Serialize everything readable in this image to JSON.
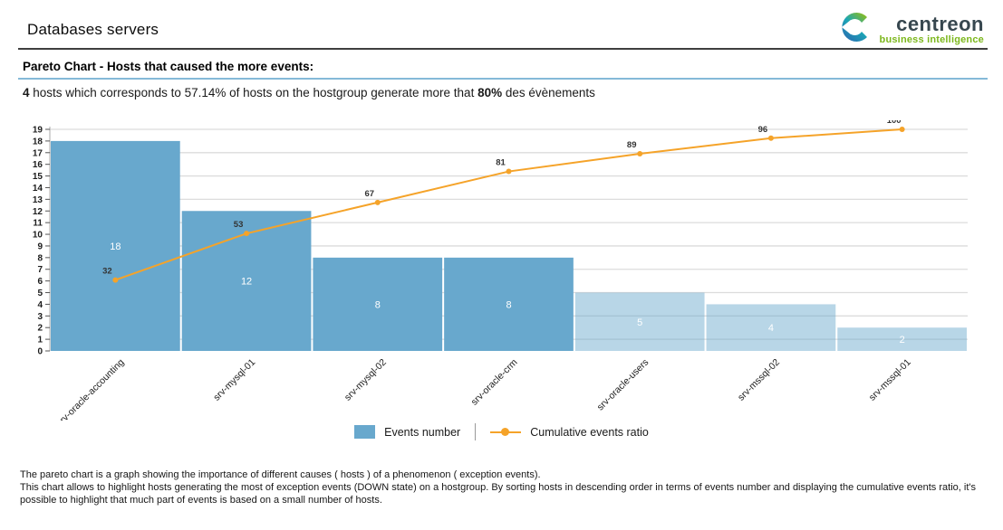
{
  "header": {
    "title": "Databases servers",
    "logo": {
      "name": "centreon",
      "tagline": "business intelligence",
      "brand_green": "#7cb71c",
      "brand_dark": "#37474f"
    }
  },
  "report": {
    "section_title": "Pareto Chart - Hosts that caused the more events:",
    "summary": {
      "bold_count": "4",
      "mid_text": " hosts which corresponds to 57.14% of hosts on the hostgroup generate more that ",
      "bold_pct": "80%",
      "tail_text": " des évènements"
    }
  },
  "chart_data": {
    "type": "bar",
    "subtype": "pareto (bar + cumulative line)",
    "categories": [
      "srv-oracle-accounting",
      "srv-mysql-01",
      "srv-mysql-02",
      "srv-oracle-crm",
      "srv-oracle-users",
      "srv-mssql-02",
      "srv-mssql-01"
    ],
    "series": [
      {
        "name": "Events number",
        "type": "bar",
        "values": [
          18,
          12,
          8,
          8,
          5,
          4,
          2
        ]
      },
      {
        "name": "Cumulative events ratio",
        "type": "line",
        "values": [
          32,
          53,
          67,
          81,
          89,
          96,
          100
        ],
        "unit": "%"
      }
    ],
    "title": "",
    "xlabel": "",
    "ylabel": "",
    "ylim": [
      0,
      19
    ],
    "y_tick_step": 1,
    "grid": "horizontal, every 2 units",
    "ratio_axis_mapping": "100% aligns with y=19",
    "primary_bar_count": 4,
    "colors": {
      "bar_primary": "#68a8cd",
      "bar_secondary": "rgba(104,168,205,0.47)",
      "line": "#f5a329",
      "grid": "#dcdcdc",
      "axis": "#a8a8a8",
      "bar_value_label": "#ffffff",
      "line_value_label": "#333333"
    },
    "legend_position": "bottom center"
  },
  "legend": {
    "bar_label": "Events number",
    "line_label": "Cumulative events ratio"
  },
  "footer": {
    "line1": "The pareto chart is a graph showing the importance of different causes ( hosts ) of a phenomenon ( exception events).",
    "line2": "This chart allows to highlight hosts generating the most of exception events (DOWN state) on a hostgroup. By sorting hosts in descending order in terms of events number and displaying the cumulative events ratio, it's",
    "line3": "possible to highlight that much part of events is based on a small number of hosts."
  }
}
